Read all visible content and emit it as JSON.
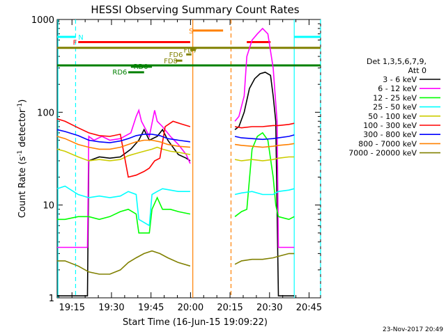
{
  "chart_data": {
    "type": "line",
    "title": "HESSI Observing Summary Count Rates",
    "xlabel": "Start Time (16-Jun-15 19:09:22)",
    "ylabel_main": "Count Rate (s",
    "ylabel_sup": "-1",
    "ylabel_tail": " detector",
    "ylabel_sup2": "-1",
    "ylabel_end": ")",
    "yscale": "log",
    "ylim": [
      1,
      1000
    ],
    "xlim_minutes": [
      0,
      100
    ],
    "x_tick_labels": [
      "19:15",
      "19:30",
      "19:45",
      "20:00",
      "20:15",
      "20:30",
      "20:45"
    ],
    "x_tick_minutes": [
      5.63,
      20.63,
      35.63,
      50.63,
      65.63,
      80.63,
      95.63
    ],
    "y_tick_labels": [
      "1",
      "10",
      "100",
      "1000"
    ],
    "y_tick_values": [
      1,
      10,
      100,
      1000
    ],
    "legend_header": [
      "Det 1,3,5,6,7,9,",
      "Att 0"
    ],
    "series": [
      {
        "name": "3 - 6 keV",
        "color": "#000000",
        "points": [
          [
            0,
            1.05
          ],
          [
            3,
            1.05
          ],
          [
            8,
            1.05
          ],
          [
            11.5,
            1.05
          ],
          [
            12,
            30
          ],
          [
            16,
            33
          ],
          [
            20,
            32
          ],
          [
            24,
            33
          ],
          [
            28,
            40
          ],
          [
            31,
            50
          ],
          [
            33,
            65
          ],
          [
            35,
            50
          ],
          [
            38,
            55
          ],
          [
            40,
            65
          ],
          [
            42,
            50
          ],
          [
            46,
            35
          ],
          [
            49,
            32
          ],
          [
            50.5,
            30
          ],
          [
            67.5,
            65
          ],
          [
            69,
            70
          ],
          [
            71,
            100
          ],
          [
            73,
            180
          ],
          [
            75,
            230
          ],
          [
            77,
            260
          ],
          [
            79,
            270
          ],
          [
            81,
            250
          ],
          [
            82,
            150
          ],
          [
            83,
            80
          ],
          [
            84,
            1.05
          ],
          [
            88,
            1.05
          ],
          [
            90,
            1.05
          ]
        ],
        "gaps_after_minutes": [
          50.5
        ]
      },
      {
        "name": "6 - 12 keV",
        "color": "#ff00ff",
        "points": [
          [
            0,
            3.5
          ],
          [
            3,
            3.5
          ],
          [
            8,
            3.5
          ],
          [
            11.5,
            3.5
          ],
          [
            12,
            55
          ],
          [
            14,
            50
          ],
          [
            17,
            55
          ],
          [
            20,
            50
          ],
          [
            24,
            52
          ],
          [
            28,
            60
          ],
          [
            30,
            90
          ],
          [
            31,
            105
          ],
          [
            32,
            80
          ],
          [
            35,
            55
          ],
          [
            37,
            105
          ],
          [
            38,
            80
          ],
          [
            40,
            70
          ],
          [
            43,
            55
          ],
          [
            46,
            45
          ],
          [
            49,
            35
          ],
          [
            50.5,
            28
          ],
          [
            67.5,
            80
          ],
          [
            69,
            90
          ],
          [
            71,
            150
          ],
          [
            72,
            400
          ],
          [
            74,
            600
          ],
          [
            76,
            700
          ],
          [
            78,
            800
          ],
          [
            80,
            700
          ],
          [
            82,
            300
          ],
          [
            83.5,
            80
          ],
          [
            84,
            3.5
          ],
          [
            88,
            3.5
          ],
          [
            90,
            3.5
          ]
        ],
        "gaps_after_minutes": [
          50.5
        ]
      },
      {
        "name": "12 - 25 keV",
        "color": "#00ff00",
        "points": [
          [
            0,
            7
          ],
          [
            3,
            7
          ],
          [
            8,
            7.5
          ],
          [
            12,
            7.5
          ],
          [
            16,
            7
          ],
          [
            20,
            7.5
          ],
          [
            24,
            8.5
          ],
          [
            27,
            9
          ],
          [
            30,
            8
          ],
          [
            31,
            5
          ],
          [
            35,
            5
          ],
          [
            36,
            9
          ],
          [
            38,
            12
          ],
          [
            40,
            9
          ],
          [
            43,
            9
          ],
          [
            46,
            8.5
          ],
          [
            50.5,
            8
          ],
          [
            67.5,
            7.5
          ],
          [
            70,
            8.5
          ],
          [
            72,
            9
          ],
          [
            74,
            40
          ],
          [
            76,
            55
          ],
          [
            78,
            60
          ],
          [
            80,
            50
          ],
          [
            82,
            20
          ],
          [
            83,
            10
          ],
          [
            84,
            7.5
          ],
          [
            88,
            7
          ],
          [
            90,
            7.5
          ]
        ],
        "gaps_after_minutes": [
          50.5
        ]
      },
      {
        "name": "25 - 50 keV",
        "color": "#00ffff",
        "points": [
          [
            0,
            15
          ],
          [
            3,
            16
          ],
          [
            8,
            13
          ],
          [
            12,
            12
          ],
          [
            16,
            12.5
          ],
          [
            20,
            12
          ],
          [
            24,
            12.5
          ],
          [
            27,
            14
          ],
          [
            30,
            13
          ],
          [
            31,
            7
          ],
          [
            35,
            6
          ],
          [
            36,
            13
          ],
          [
            38,
            14
          ],
          [
            40,
            15
          ],
          [
            43,
            14.5
          ],
          [
            46,
            14
          ],
          [
            50.5,
            14
          ],
          [
            67.5,
            13
          ],
          [
            70,
            13.5
          ],
          [
            74,
            14
          ],
          [
            78,
            13
          ],
          [
            82,
            13
          ],
          [
            84,
            14
          ],
          [
            88,
            14.5
          ],
          [
            90,
            15
          ]
        ],
        "gaps_after_minutes": [
          50.5
        ]
      },
      {
        "name": "50 - 100 keV",
        "color": "#cccc00",
        "points": [
          [
            0,
            40
          ],
          [
            3,
            38
          ],
          [
            8,
            33
          ],
          [
            12,
            30
          ],
          [
            16,
            31
          ],
          [
            20,
            30
          ],
          [
            24,
            31
          ],
          [
            27,
            34
          ],
          [
            30,
            36
          ],
          [
            33,
            38
          ],
          [
            36,
            40
          ],
          [
            38,
            42
          ],
          [
            40,
            40
          ],
          [
            43,
            38
          ],
          [
            46,
            37
          ],
          [
            50.5,
            35
          ],
          [
            67.5,
            31
          ],
          [
            70,
            30
          ],
          [
            74,
            31
          ],
          [
            78,
            30
          ],
          [
            82,
            31
          ],
          [
            84,
            32
          ],
          [
            88,
            33
          ],
          [
            90,
            33
          ]
        ],
        "gaps_after_minutes": [
          50.5
        ]
      },
      {
        "name": "100 - 300 keV",
        "color": "#ff0000",
        "points": [
          [
            0,
            85
          ],
          [
            3,
            80
          ],
          [
            8,
            68
          ],
          [
            12,
            60
          ],
          [
            16,
            56
          ],
          [
            20,
            55
          ],
          [
            24,
            58
          ],
          [
            27,
            20
          ],
          [
            30,
            21
          ],
          [
            33,
            23
          ],
          [
            35,
            25
          ],
          [
            37,
            30
          ],
          [
            39,
            32
          ],
          [
            41,
            70
          ],
          [
            44,
            80
          ],
          [
            47,
            75
          ],
          [
            50.5,
            70
          ],
          [
            67.5,
            70
          ],
          [
            70,
            68
          ],
          [
            74,
            70
          ],
          [
            78,
            70
          ],
          [
            82,
            72
          ],
          [
            84,
            72
          ],
          [
            88,
            74
          ],
          [
            90,
            76
          ]
        ],
        "gaps_after_minutes": [
          50.5
        ]
      },
      {
        "name": "300 - 800 keV",
        "color": "#0000ff",
        "points": [
          [
            0,
            65
          ],
          [
            3,
            62
          ],
          [
            8,
            56
          ],
          [
            12,
            50
          ],
          [
            16,
            48
          ],
          [
            20,
            47
          ],
          [
            24,
            49
          ],
          [
            27,
            52
          ],
          [
            30,
            56
          ],
          [
            33,
            58
          ],
          [
            36,
            58
          ],
          [
            39,
            56
          ],
          [
            42,
            52
          ],
          [
            46,
            50
          ],
          [
            50.5,
            48
          ],
          [
            67.5,
            55
          ],
          [
            70,
            53
          ],
          [
            74,
            52
          ],
          [
            78,
            51
          ],
          [
            82,
            52
          ],
          [
            84,
            53
          ],
          [
            88,
            55
          ],
          [
            90,
            57
          ]
        ],
        "gaps_after_minutes": [
          50.5
        ]
      },
      {
        "name": "800 - 7000 keV",
        "color": "#ff8000",
        "points": [
          [
            0,
            55
          ],
          [
            3,
            52
          ],
          [
            8,
            45
          ],
          [
            12,
            42
          ],
          [
            16,
            40
          ],
          [
            20,
            40
          ],
          [
            24,
            42
          ],
          [
            27,
            45
          ],
          [
            30,
            48
          ],
          [
            33,
            50
          ],
          [
            36,
            50
          ],
          [
            39,
            48
          ],
          [
            42,
            45
          ],
          [
            46,
            43
          ],
          [
            50.5,
            42
          ],
          [
            67.5,
            45
          ],
          [
            70,
            44
          ],
          [
            74,
            43
          ],
          [
            78,
            42
          ],
          [
            82,
            43
          ],
          [
            84,
            44
          ],
          [
            88,
            45
          ],
          [
            90,
            46
          ]
        ],
        "gaps_after_minutes": [
          50.5
        ]
      },
      {
        "name": "7000 - 20000 keV",
        "color": "#808000",
        "points": [
          [
            0,
            2.5
          ],
          [
            3,
            2.5
          ],
          [
            8,
            2.2
          ],
          [
            12,
            1.9
          ],
          [
            16,
            1.8
          ],
          [
            20,
            1.8
          ],
          [
            24,
            2
          ],
          [
            27,
            2.4
          ],
          [
            30,
            2.7
          ],
          [
            33,
            3
          ],
          [
            36,
            3.2
          ],
          [
            39,
            3
          ],
          [
            42,
            2.7
          ],
          [
            46,
            2.4
          ],
          [
            50.5,
            2.2
          ],
          [
            67.5,
            2.3
          ],
          [
            70,
            2.5
          ],
          [
            74,
            2.6
          ],
          [
            78,
            2.6
          ],
          [
            82,
            2.7
          ],
          [
            84,
            2.8
          ],
          [
            88,
            3
          ],
          [
            90,
            3
          ]
        ],
        "gaps_after_minutes": [
          50.5
        ]
      }
    ],
    "flags": [
      {
        "label": "N",
        "color": "#00ffff",
        "x0": 0,
        "x1": 7,
        "x2": 90,
        "x3": 100,
        "level": 650,
        "label_x": 8
      },
      {
        "label": "F",
        "color": "#ff0000",
        "x0": 8,
        "x1": 50.5,
        "x2": 72,
        "x3": 81,
        "level": 570,
        "label_x": 6
      },
      {
        "label": "S",
        "color": "#ff8000",
        "x0": 51.5,
        "x1": 63,
        "level": 760,
        "label_x": 50
      },
      {
        "label": "FD7",
        "color": "#808000",
        "x0": 50.5,
        "x1": 52.5,
        "level": 470,
        "label_x": 48
      },
      {
        "label": "FD6",
        "color": "#808000",
        "x0": 49,
        "x1": 51,
        "level": 420,
        "label_x": 42.5
      },
      {
        "label": "FD8",
        "color": "#808000",
        "x0": 45,
        "x1": 47.5,
        "level": 360,
        "label_x": 40.5
      }
    ],
    "flag_lines": [
      {
        "color": "#808000",
        "x0": 0,
        "x1": 100,
        "level": 495
      },
      {
        "color": "#008000",
        "x0": 0,
        "x1": 100,
        "level": 320
      }
    ],
    "rd_labels": [
      {
        "label": "RD0",
        "color": "#008000",
        "x0": 28,
        "x1": 36,
        "level": 310,
        "label_x": 29
      },
      {
        "label": "RD6",
        "color": "#008000",
        "x0": 27,
        "x1": 33,
        "level": 270,
        "label_x": 21
      }
    ],
    "vlines": [
      {
        "minute": 0.3,
        "color": "#00ffff",
        "style": "solid"
      },
      {
        "minute": 7,
        "color": "#00ffff",
        "style": "dashed"
      },
      {
        "minute": 51.5,
        "color": "#ff8000",
        "style": "solid"
      },
      {
        "minute": 66,
        "color": "#ff8000",
        "style": "dashed"
      },
      {
        "minute": 90,
        "color": "#00ffff",
        "style": "solid"
      },
      {
        "minute": 100,
        "color": "#00ffff",
        "style": "dashed"
      }
    ],
    "timestamp": "23-Nov-2017 20:49"
  }
}
